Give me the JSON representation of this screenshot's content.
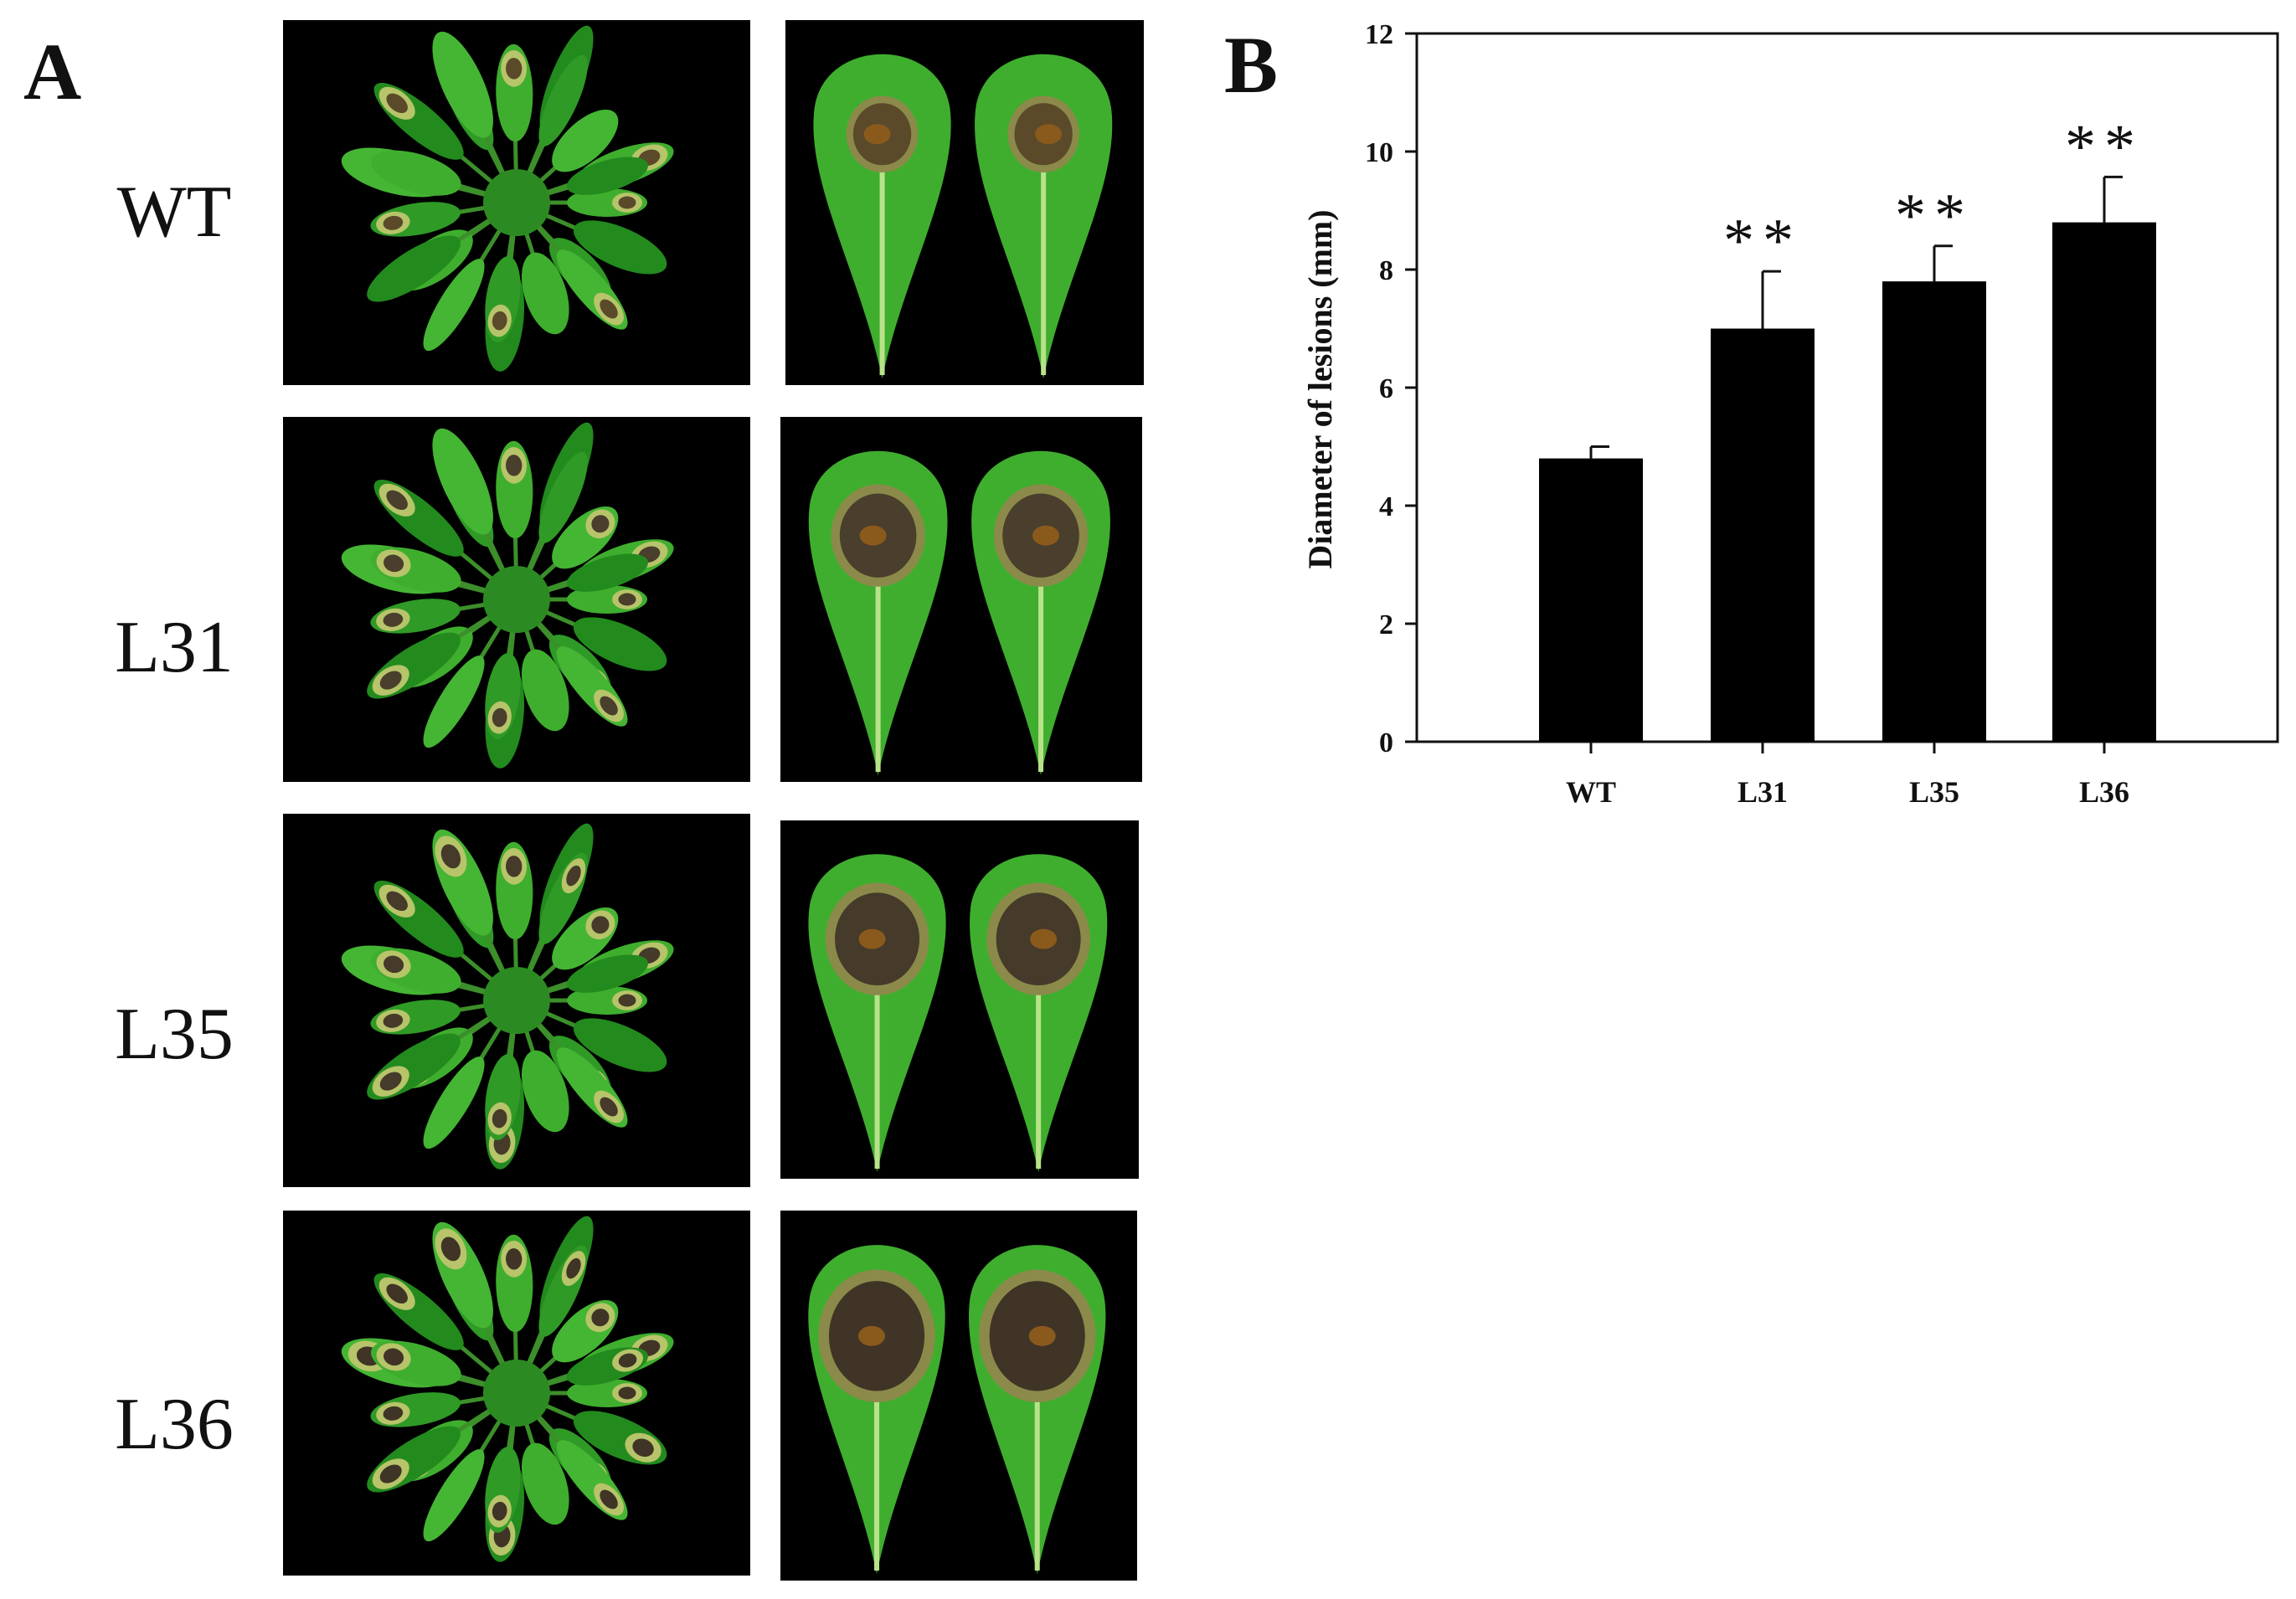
{
  "panel_a": {
    "letter": "A",
    "rows": [
      {
        "label": "WT",
        "lesion_size": 0.25,
        "lesion_color": "#5a4a2a"
      },
      {
        "label": "L31",
        "lesion_size": 0.5,
        "lesion_color": "#4a3e2c"
      },
      {
        "label": "L35",
        "lesion_size": 0.62,
        "lesion_color": "#463a2a"
      },
      {
        "label": "L36",
        "lesion_size": 0.78,
        "lesion_color": "#403426"
      }
    ],
    "colors": {
      "background": "#000000",
      "leaf": "#3fae2e",
      "leaf_dark": "#238a1e",
      "leaf_light": "#7fd04a",
      "midrib": "#b8e28a"
    }
  },
  "panel_b": {
    "letter": "B"
  },
  "chart_data": {
    "type": "bar",
    "categories": [
      "WT",
      "L31",
      "L35",
      "L36"
    ],
    "values": [
      4.8,
      7.0,
      7.8,
      8.8
    ],
    "errors": [
      0.2,
      0.97,
      0.6,
      0.77
    ],
    "annotations": [
      "",
      "**",
      "**",
      "**"
    ],
    "title": "",
    "xlabel": "",
    "ylabel": "Diameter of lesions (mm)",
    "ylim": [
      0,
      12
    ],
    "yticks": [
      0,
      2,
      4,
      6,
      8,
      10,
      12
    ],
    "grid": false,
    "bar_color": "#000000"
  }
}
